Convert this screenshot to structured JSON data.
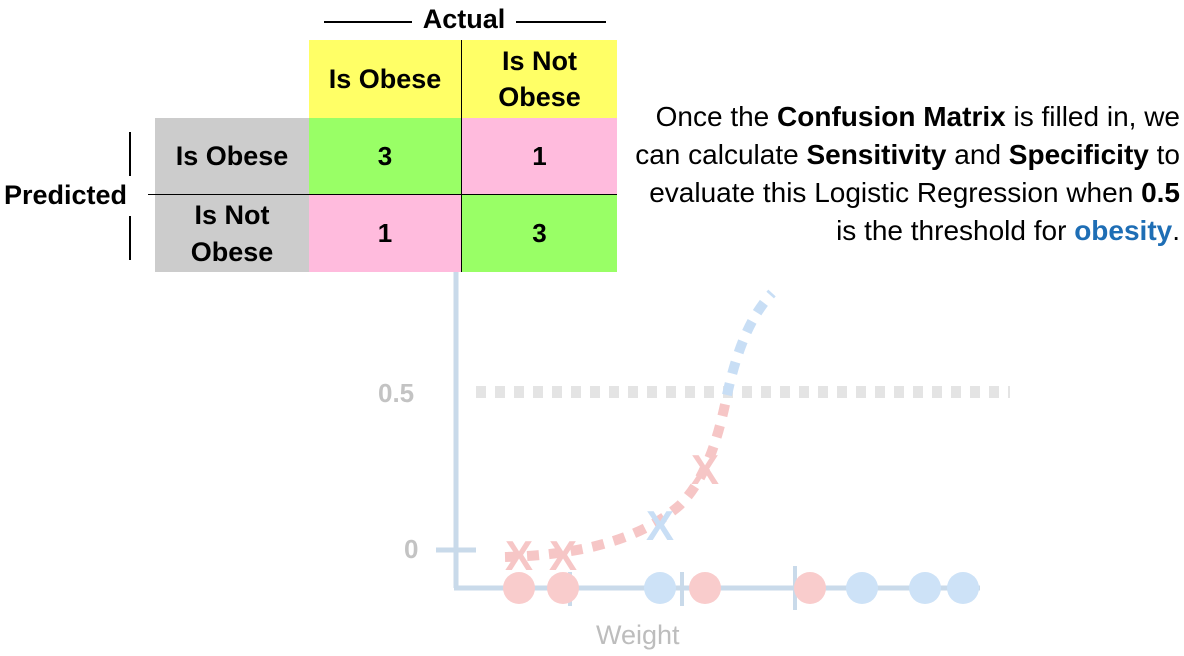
{
  "matrix": {
    "actual_title": "Actual",
    "predicted_title": "Predicted",
    "col_headers": [
      "Is Obese",
      "Is Not\nObese"
    ],
    "row_headers": [
      "Is Obese",
      "Is Not\nObese"
    ],
    "cells": [
      [
        "3",
        "1"
      ],
      [
        "1",
        "3"
      ]
    ],
    "colors": {
      "header": "#ffff66",
      "row_header": "#cccccc",
      "correct": "#99ff66",
      "incorrect": "#ffbbdd"
    }
  },
  "explanation": {
    "p1": "Once the ",
    "b1": "Confusion Matrix",
    "p2": " is filled in, we can calculate ",
    "b2": "Sensitivity",
    "p3": " and ",
    "b3": "Specificity",
    "p4": " to evaluate this Logistic Regression when ",
    "b4": "0.5",
    "p5": " is the threshold for ",
    "b5": "obesity",
    "p6": ".",
    "accent_color": "#1e6eb5"
  },
  "chart": {
    "y_ticks": [
      "0.5",
      "0"
    ],
    "x_label": "Weight",
    "threshold": 0.5,
    "x_marker_labels": [
      "X",
      "X",
      "X",
      "X"
    ],
    "colors": {
      "axis": "#c9daea",
      "obese": "#f6c6c6",
      "not_obese": "#c8def5",
      "threshold_line": "#e4e4e4"
    }
  }
}
